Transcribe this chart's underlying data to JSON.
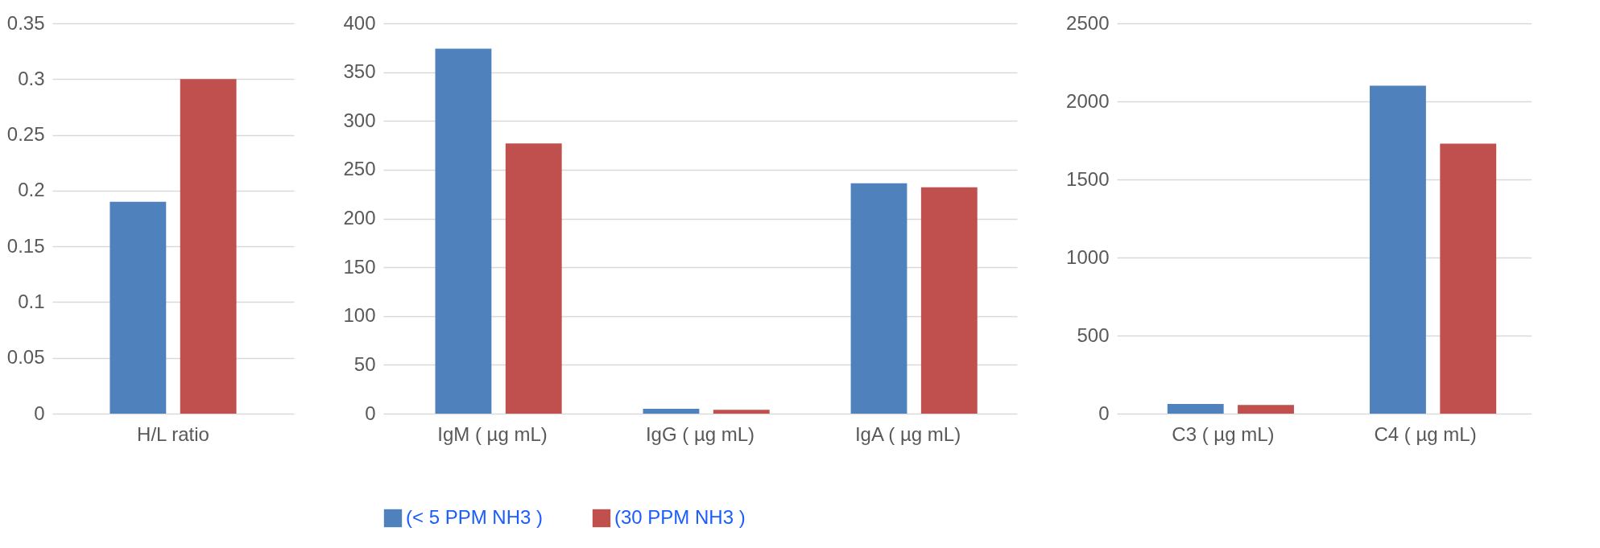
{
  "chart_data": [
    {
      "type": "bar",
      "categories": [
        "H/L ratio"
      ],
      "series": [
        {
          "color": "#4f81bd",
          "values": [
            0.19
          ]
        },
        {
          "color": "#c0504d",
          "values": [
            0.3
          ]
        }
      ],
      "ylim": [
        0,
        0.35
      ],
      "yticks": [
        0,
        0.05,
        0.1,
        0.15,
        0.2,
        0.25,
        0.3,
        0.35
      ],
      "grid": "y"
    },
    {
      "type": "bar",
      "categories": [
        "IgM ( µg mL)",
        "IgG  ( µg mL)",
        "IgA ( µg mL)"
      ],
      "series": [
        {
          "name": "(< 5 PPM NH3 )",
          "color": "#4f81bd",
          "values": [
            374,
            5,
            236
          ]
        },
        {
          "name": "(30 PPM NH3 )",
          "color": "#c0504d",
          "values": [
            277,
            4,
            232
          ]
        }
      ],
      "ylim": [
        0,
        400
      ],
      "yticks": [
        0,
        50,
        100,
        150,
        200,
        250,
        300,
        350,
        400
      ],
      "grid": "y",
      "legend": "bottom"
    },
    {
      "type": "bar",
      "categories": [
        "C3 ( µg mL)",
        "C4 ( µg mL)"
      ],
      "series": [
        {
          "color": "#4f81bd",
          "values": [
            62,
            2100
          ]
        },
        {
          "color": "#c0504d",
          "values": [
            55,
            1730
          ]
        }
      ],
      "ylim": [
        0,
        2500
      ],
      "yticks": [
        0,
        500,
        1000,
        1500,
        2000,
        2500
      ],
      "grid": "y"
    }
  ]
}
